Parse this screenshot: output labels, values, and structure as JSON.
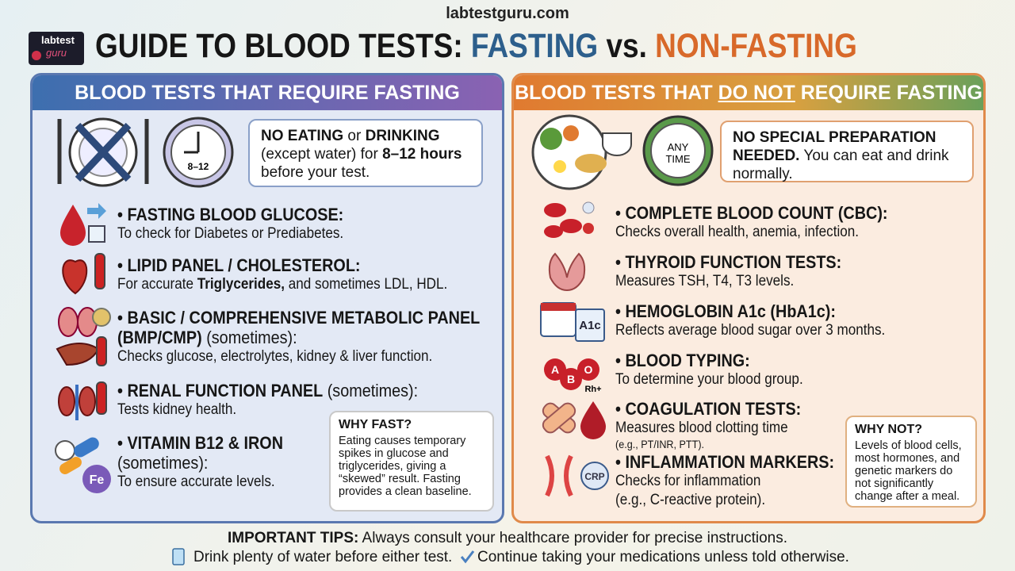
{
  "header": {
    "site": "labtestguru.com",
    "logo": [
      "labtest",
      "guru"
    ],
    "title": [
      {
        "text": "GUIDE TO BLOOD TESTS: ",
        "color": "#161616"
      },
      {
        "text": "FASTING",
        "color": "#2d5f8c"
      },
      {
        "text": " vs. ",
        "color": "#161616"
      },
      {
        "text": "NON-FASTING",
        "color": "#d8692a"
      }
    ]
  },
  "left": {
    "heading": [
      {
        "text": "BLOOD TESTS THAT REQUIRE FASTING"
      }
    ],
    "clock_label": "8–12",
    "notice": [
      {
        "text": "NO EATING",
        "bold": true
      },
      {
        "text": " or "
      },
      {
        "text": "DRINKING",
        "bold": true
      },
      {
        "text": " (except water) for "
      },
      {
        "text": "8–12 hours",
        "bold": true
      },
      {
        "text": " before your test."
      }
    ],
    "tests": [
      {
        "title": [
          {
            "text": "FASTING BLOOD GLUCOSE:",
            "bold": true
          }
        ],
        "description": [
          {
            "text": "To check for Diabetes or Prediabetes."
          }
        ]
      },
      {
        "title": [
          {
            "text": "LIPID PANEL / CHOLESTEROL:",
            "bold": true
          }
        ],
        "description": [
          {
            "text": "For accurate "
          },
          {
            "text": "Triglycerides,",
            "bold": true
          },
          {
            "text": " and sometimes LDL, HDL."
          }
        ]
      },
      {
        "title": [
          {
            "text": "BASIC / COMPREHENSIVE METABOLIC PANEL (BMP/CMP)",
            "bold": true
          },
          {
            "text": " (sometimes):"
          }
        ],
        "description": [
          {
            "text": "Checks glucose, electrolytes, kidney & liver function."
          }
        ]
      },
      {
        "title": [
          {
            "text": "RENAL FUNCTION PANEL",
            "bold": true
          },
          {
            "text": " (sometimes):"
          }
        ],
        "description": [
          {
            "text": "Tests kidney health."
          }
        ]
      },
      {
        "title": [
          {
            "text": "VITAMIN B12 & IRON",
            "bold": true
          },
          {
            "text": " (sometimes):"
          }
        ],
        "description": [
          {
            "text": "To ensure accurate levels."
          }
        ]
      }
    ],
    "note": {
      "title": "WHY FAST?",
      "text": "Eating causes temporary spikes in glucose and triglycerides, giving a “skewed” result. Fasting provides a clean baseline."
    },
    "icon_labels": [
      "Fe"
    ]
  },
  "right": {
    "heading": [
      {
        "text": "BLOOD TESTS THAT "
      },
      {
        "text": "DO NOT",
        "underline": true
      },
      {
        "text": " REQUIRE FASTING"
      }
    ],
    "clock_label": "ANY TIME",
    "notice": [
      {
        "text": "NO SPECIAL PREPARATION NEEDED.",
        "bold": true
      },
      {
        "text": " You can eat and drink normally."
      }
    ],
    "tests": [
      {
        "title": [
          {
            "text": "COMPLETE BLOOD COUNT (CBC):",
            "bold": true
          }
        ],
        "description": [
          {
            "text": "Checks overall health, anemia, infection."
          }
        ]
      },
      {
        "title": [
          {
            "text": "THYROID FUNCTION TESTS:",
            "bold": true
          }
        ],
        "description": [
          {
            "text": "Measures TSH, T4, T3 levels."
          }
        ]
      },
      {
        "title": [
          {
            "text": "HEMOGLOBIN A1c (HbA1c):",
            "bold": true
          }
        ],
        "description": [
          {
            "text": "Reflects average blood sugar over 3 months."
          }
        ]
      },
      {
        "title": [
          {
            "text": "BLOOD TYPING:",
            "bold": true
          }
        ],
        "description": [
          {
            "text": "To determine your blood group."
          }
        ]
      },
      {
        "title": [
          {
            "text": "COAGULATION TESTS:",
            "bold": true
          }
        ],
        "description": [
          {
            "text": "Measures blood clotting time"
          }
        ],
        "detail": "(e.g., PT/INR, PTT).",
        "detail_size": "small"
      },
      {
        "title": [
          {
            "text": "INFLAMMATION MARKERS:",
            "bold": true
          }
        ],
        "description": [
          {
            "text": "Checks for inflammation"
          }
        ],
        "detail": "(e.g., C-reactive protein).",
        "detail_size": "normal"
      }
    ],
    "note": {
      "title": "WHY NOT?",
      "text": "Levels of blood cells, most hormones, and genetic markers do not significantly change after a meal."
    },
    "icon_labels": [
      "A1c",
      "A",
      "B",
      "O",
      "Rh+",
      "CRP"
    ]
  },
  "footer": {
    "tips": [
      {
        "text": "IMPORTANT TIPS:",
        "bold": true
      },
      {
        "text": " Always consult your healthcare provider for precise instructions."
      }
    ],
    "water": "Drink plenty of water before either test.",
    "medications": "Continue taking your medications unless told otherwise."
  }
}
